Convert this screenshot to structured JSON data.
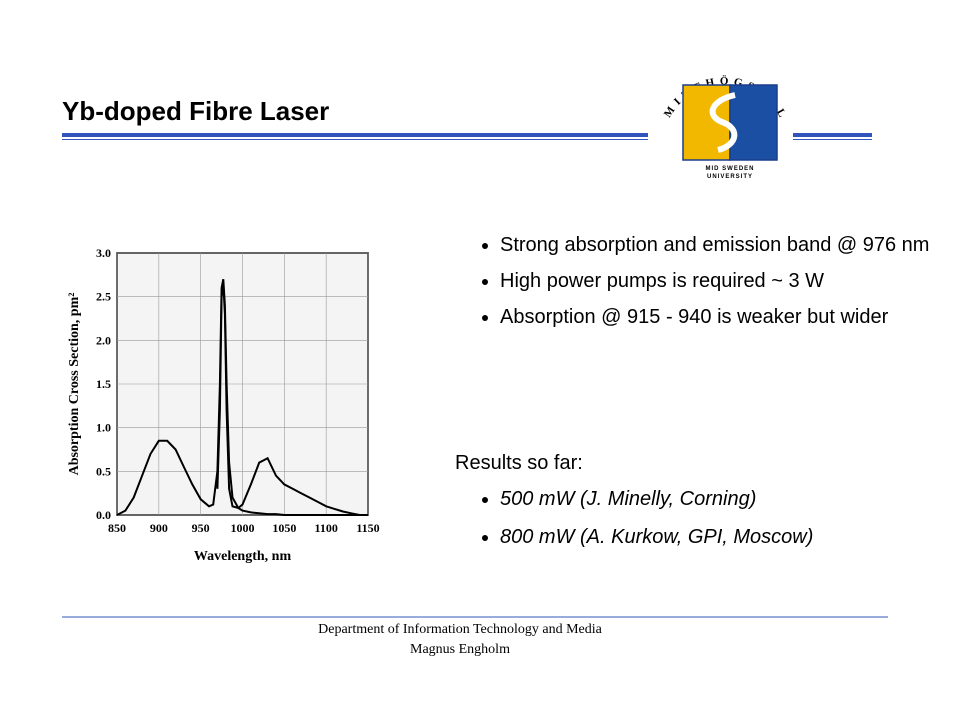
{
  "header": {
    "title": "Yb-doped Fibre Laser"
  },
  "logo": {
    "name": "MITTHÖGSKOLAN",
    "subtitle": [
      "MID SWEDEN",
      "UNIVERSITY"
    ]
  },
  "chart_data": {
    "type": "line",
    "xlabel": "Wavelength, nm",
    "ylabel": "Absorption Cross Section, pm²",
    "x": [
      850,
      860,
      870,
      880,
      890,
      900,
      910,
      920,
      930,
      940,
      950,
      960,
      965,
      970,
      973,
      975,
      977,
      979,
      981,
      984,
      988,
      995,
      1000,
      1010,
      1020,
      1030,
      1040,
      1050,
      1060,
      1070,
      1080,
      1090,
      1100,
      1110,
      1120,
      1130,
      1140,
      1150
    ],
    "series": [
      {
        "color": "#000000",
        "values": [
          0.0,
          0.05,
          0.2,
          0.45,
          0.7,
          0.85,
          0.85,
          0.75,
          0.55,
          0.35,
          0.18,
          0.1,
          0.12,
          0.5,
          1.5,
          2.6,
          2.7,
          2.4,
          1.5,
          0.6,
          0.2,
          0.08,
          0.05,
          0.03,
          0.02,
          0.01,
          0.01,
          0.0,
          0.0,
          0.0,
          0.0,
          0.0,
          0.0,
          0.0,
          0.0,
          0.0,
          0.0,
          0.0
        ]
      },
      {
        "color": "#000000",
        "values": [
          null,
          null,
          null,
          null,
          null,
          null,
          null,
          null,
          null,
          null,
          null,
          null,
          null,
          0.3,
          1.2,
          2.5,
          2.65,
          2.3,
          1.2,
          0.3,
          0.1,
          0.08,
          0.12,
          0.35,
          0.6,
          0.65,
          0.45,
          0.35,
          0.3,
          0.25,
          0.2,
          0.15,
          0.1,
          0.07,
          0.04,
          0.02,
          0.0,
          0.0
        ]
      }
    ],
    "xlim": [
      850,
      1150
    ],
    "xticks": [
      850,
      900,
      950,
      1000,
      1050,
      1100,
      1150
    ],
    "ylim": [
      0,
      3
    ],
    "yticks": [
      {
        "value": 0,
        "label": "0.0"
      },
      0.5,
      {
        "value": 1,
        "label": "1.0"
      },
      1.5,
      {
        "value": 2,
        "label": "2.0"
      },
      2.5,
      {
        "value": 3,
        "label": "3.0"
      }
    ],
    "grid": true
  },
  "bullets": [
    "Strong absorption and emission band @ 976 nm",
    "High power pumps is required ~ 3 W",
    "Absorption @ 915 - 940 is weaker but wider"
  ],
  "results": {
    "heading": "Results so far:",
    "items": [
      "500 mW (J. Minelly, Corning)",
      "800 mW (A. Kurkow, GPI, Moscow)"
    ]
  },
  "footer": [
    "Department of Information Technology and Media",
    "Magnus Engholm"
  ]
}
